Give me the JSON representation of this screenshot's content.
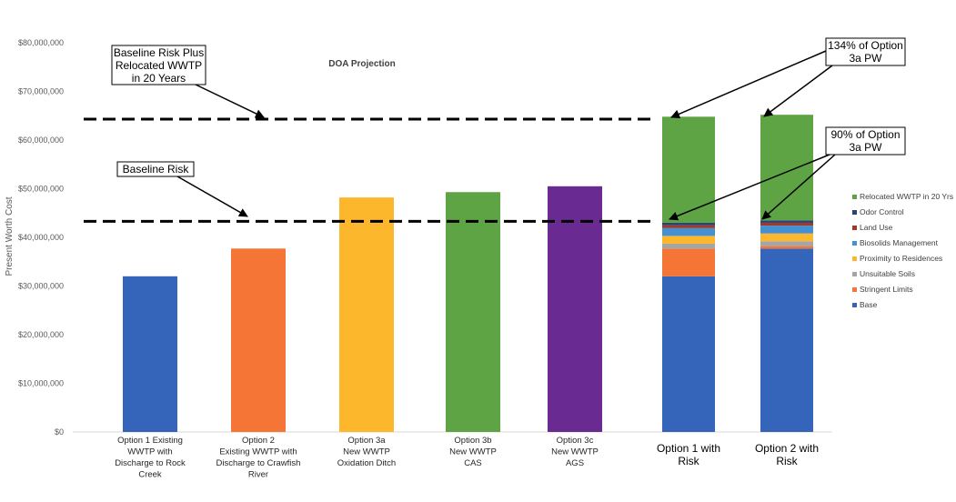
{
  "chart_data": {
    "type": "bar",
    "title": "DOA Projection",
    "ylabel": "Present Worth Cost",
    "xlabel": "",
    "ylim": [
      0,
      80000000
    ],
    "y_ticks": [
      "$0",
      "$10,000,000",
      "$20,000,000",
      "$30,000,000",
      "$40,000,000",
      "$50,000,000",
      "$60,000,000",
      "$70,000,000",
      "$80,000,000"
    ],
    "y_tick_values": [
      0,
      10000000,
      20000000,
      30000000,
      40000000,
      50000000,
      60000000,
      70000000,
      80000000
    ],
    "categories": [
      "Option 1 Existing WWTP with Discharge to Rock Creek",
      "Option 2 Existing WWTP with Discharge to Crawfish River",
      "Option 3a New WWTP Oxidation Ditch",
      "Option 3b New WWTP CAS",
      "Option 3c New WWTP AGS",
      "Option 1 with Risk",
      "Option 2 with Risk"
    ],
    "category_lines": [
      [
        "Option 1 Existing",
        "WWTP with",
        "Discharge to Rock",
        "Creek"
      ],
      [
        "Option 2",
        "Existing WWTP with",
        "Discharge to Crawfish",
        "River"
      ],
      [
        "Option 3a",
        "New WWTP",
        "Oxidation Ditch"
      ],
      [
        "Option 3b",
        "New WWTP",
        "CAS"
      ],
      [
        "Option 3c",
        "New WWTP",
        "AGS"
      ],
      [
        "Option 1 with",
        "Risk"
      ],
      [
        "Option 2 with",
        "Risk"
      ]
    ],
    "simple_bars": [
      {
        "category": "Option 1 Existing WWTP with Discharge to Rock Creek",
        "value": 32000000,
        "color": "#3465BA"
      },
      {
        "category": "Option 2 Existing WWTP with Discharge to Crawfish River",
        "value": 37700000,
        "color": "#F47535"
      },
      {
        "category": "Option 3a New WWTP Oxidation Ditch",
        "value": 48200000,
        "color": "#FDB72D"
      },
      {
        "category": "Option 3b New WWTP CAS",
        "value": 49300000,
        "color": "#5FA444"
      },
      {
        "category": "Option 3c New WWTP AGS",
        "value": 50500000,
        "color": "#692B91"
      }
    ],
    "stacked_series": [
      {
        "name": "Base",
        "color": "#3465BA",
        "values": [
          32000000,
          37700000
        ]
      },
      {
        "name": "Stringent Limits",
        "color": "#F47535",
        "values": [
          5700000,
          500000
        ]
      },
      {
        "name": "Unsuitable Soils",
        "color": "#A5A5A5",
        "values": [
          1000000,
          1000000
        ]
      },
      {
        "name": "Proximity to Residences",
        "color": "#FDB72D",
        "values": [
          1600000,
          1600000
        ]
      },
      {
        "name": "Biosolids Management",
        "color": "#4391D4",
        "values": [
          1600000,
          1600000
        ]
      },
      {
        "name": "Land Use",
        "color": "#9E3A26",
        "values": [
          600000,
          600000
        ]
      },
      {
        "name": "Odor Control",
        "color": "#264478",
        "values": [
          500000,
          500000
        ]
      },
      {
        "name": "Relocated WWTP in 20 Yrs",
        "color": "#5FA444",
        "values": [
          21800000,
          21700000
        ]
      }
    ],
    "legend_order": [
      "Relocated WWTP in 20 Yrs",
      "Odor Control",
      "Land Use",
      "Biosolids Management",
      "Proximity to Residences",
      "Unsuitable Soils",
      "Stringent Limits",
      "Base"
    ],
    "legend_position": "right",
    "reference_lines": [
      {
        "label": "Baseline Risk Plus Relocated WWTP in 20 Years",
        "lines": [
          "Baseline Risk Plus",
          "Relocated WWTP",
          "in 20 Years"
        ],
        "value": 64300000
      },
      {
        "label": "Baseline Risk",
        "lines": [
          "Baseline Risk"
        ],
        "value": 43300000
      }
    ],
    "annotations": [
      {
        "text": "134% of Option 3a PW",
        "lines": [
          "134% of Option",
          "3a PW"
        ]
      },
      {
        "text": "90% of Option 3a PW",
        "lines": [
          "90% of Option",
          "3a PW"
        ]
      }
    ],
    "grid": false
  }
}
